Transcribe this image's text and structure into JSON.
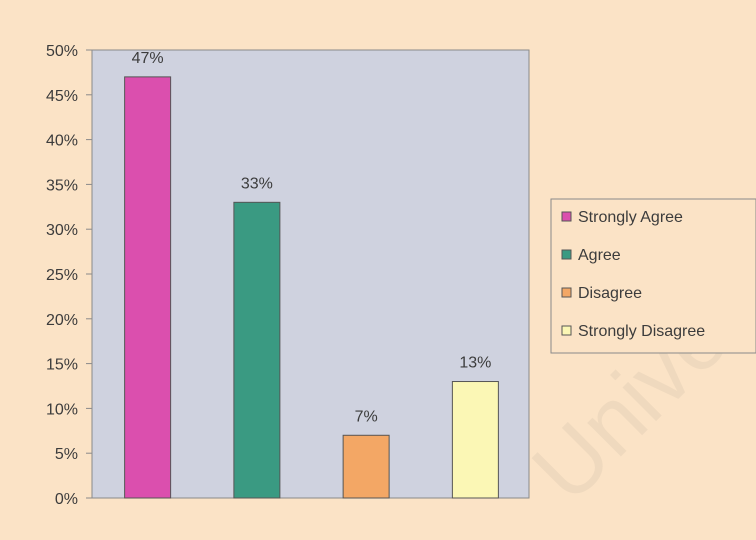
{
  "colors": {
    "background": "#fbe3c6",
    "plot_area": "#cfd2df",
    "axis": "#8a8a8a",
    "text": "#3c3c3c",
    "watermark": "#e7d2b8"
  },
  "chart_data": {
    "type": "bar",
    "categories": [
      "Strongly Agree",
      "Agree",
      "Disagree",
      "Strongly Disagree"
    ],
    "values": [
      47,
      33,
      7,
      13
    ],
    "data_labels": [
      "47%",
      "33%",
      "7%",
      "13%"
    ],
    "bar_colors": [
      "#db4fae",
      "#3a9a82",
      "#f3a765",
      "#fbf7b5"
    ],
    "ylim": [
      0,
      50
    ],
    "yticks": [
      0,
      5,
      10,
      15,
      20,
      25,
      30,
      35,
      40,
      45,
      50
    ],
    "ytick_labels": [
      "0%",
      "5%",
      "10%",
      "15%",
      "20%",
      "25%",
      "30%",
      "35%",
      "40%",
      "45%",
      "50%"
    ],
    "grid": false,
    "legend": {
      "position": "right",
      "entries": [
        "Strongly Agree",
        "Agree",
        "Disagree",
        "Strongly Disagree"
      ]
    },
    "title": "",
    "xlabel": "",
    "ylabel": ""
  },
  "watermark": {
    "text": "University of Cape Town"
  }
}
